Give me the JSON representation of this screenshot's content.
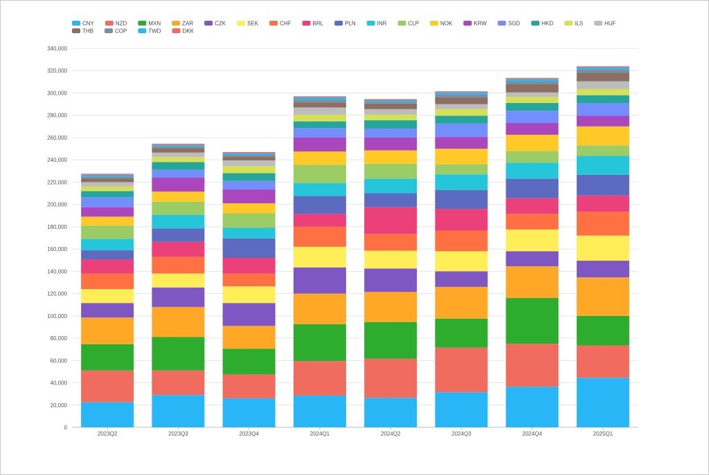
{
  "chart_data": {
    "type": "bar",
    "stacked": true,
    "title": "",
    "xlabel": "",
    "ylabel": "",
    "ylim": [
      0,
      340000
    ],
    "y_tick_step": 20000,
    "grid": true,
    "legend_position": "top-left",
    "categories": [
      "2023Q2",
      "2023Q3",
      "2023Q4",
      "2024Q1",
      "2024Q2",
      "2024Q3",
      "2024Q4",
      "2025Q1"
    ],
    "series": [
      {
        "name": "CNY",
        "color": "#29b6f6",
        "values": [
          22500,
          29000,
          26000,
          28500,
          26500,
          31500,
          36500,
          44500
        ]
      },
      {
        "name": "NZD",
        "color": "#f06c5e",
        "values": [
          28500,
          22000,
          21500,
          31000,
          35000,
          40000,
          38500,
          29000
        ]
      },
      {
        "name": "MXN",
        "color": "#2eac2e",
        "values": [
          23500,
          30000,
          23000,
          33000,
          33000,
          26000,
          41000,
          26500
        ]
      },
      {
        "name": "ZAR",
        "color": "#ffa726",
        "values": [
          24000,
          27000,
          20500,
          27500,
          27000,
          28500,
          28500,
          34500
        ]
      },
      {
        "name": "CZK",
        "color": "#7e57c2",
        "values": [
          13000,
          17500,
          20500,
          23500,
          21000,
          14000,
          13500,
          15000
        ]
      },
      {
        "name": "SEK",
        "color": "#ffee58",
        "values": [
          12500,
          12500,
          15000,
          18500,
          16000,
          18000,
          19500,
          22500
        ]
      },
      {
        "name": "CHF",
        "color": "#ff7043",
        "values": [
          14000,
          15000,
          11500,
          18000,
          15000,
          18500,
          14000,
          21500
        ]
      },
      {
        "name": "BRL",
        "color": "#ec407a",
        "values": [
          12500,
          13500,
          14000,
          11500,
          24000,
          19500,
          14000,
          14500
        ]
      },
      {
        "name": "PLN",
        "color": "#5c6bc0",
        "values": [
          8500,
          12000,
          17500,
          16000,
          12500,
          17000,
          17500,
          18500
        ]
      },
      {
        "name": "INR",
        "color": "#26c6da",
        "values": [
          10000,
          12000,
          9500,
          11500,
          13000,
          14000,
          14500,
          17000
        ]
      },
      {
        "name": "CLP",
        "color": "#9ccc65",
        "values": [
          12000,
          12000,
          13000,
          16500,
          13500,
          9000,
          10500,
          9500
        ]
      },
      {
        "name": "NOK",
        "color": "#ffca28",
        "values": [
          8000,
          9000,
          9000,
          12000,
          12000,
          14000,
          14500,
          17000
        ]
      },
      {
        "name": "KRW",
        "color": "#ab47bc",
        "values": [
          8500,
          12500,
          12500,
          12500,
          11500,
          10500,
          10500,
          9500
        ]
      },
      {
        "name": "SGD",
        "color": "#738ffe",
        "values": [
          9000,
          7000,
          7500,
          8500,
          8000,
          12000,
          11000,
          11500
        ]
      },
      {
        "name": "HKD",
        "color": "#26a69a",
        "values": [
          5500,
          7000,
          7000,
          6000,
          7500,
          7000,
          7000,
          7000
        ]
      },
      {
        "name": "ILS",
        "color": "#d4e157",
        "values": [
          4000,
          4500,
          6500,
          6000,
          5000,
          6000,
          5500,
          5500
        ]
      },
      {
        "name": "HUF",
        "color": "#bdbdbd",
        "values": [
          4000,
          4000,
          5000,
          6500,
          5000,
          4500,
          4000,
          7000
        ]
      },
      {
        "name": "THB",
        "color": "#8d6e63",
        "values": [
          3500,
          4000,
          3500,
          4500,
          5000,
          6000,
          7500,
          7500
        ]
      },
      {
        "name": "COP",
        "color": "#78909c",
        "values": [
          1500,
          1500,
          1500,
          2500,
          1500,
          2500,
          2500,
          3000
        ]
      },
      {
        "name": "TWD",
        "color": "#29b6f6",
        "values": [
          1500,
          1500,
          1500,
          2000,
          1500,
          2000,
          2000,
          2000
        ]
      },
      {
        "name": "DKK",
        "color": "#f06c5e",
        "values": [
          1000,
          1000,
          1000,
          1000,
          1000,
          1000,
          1000,
          1000
        ]
      }
    ]
  }
}
